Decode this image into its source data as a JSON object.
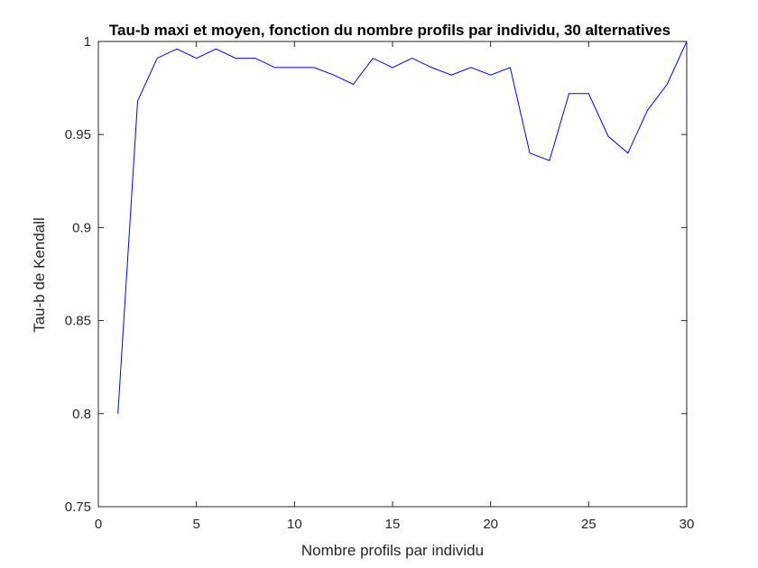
{
  "chart_data": {
    "type": "line",
    "title": "Tau-b maxi et moyen, fonction du nombre profils par individu, 30 alternatives",
    "xlabel": "Nombre profils par individu",
    "ylabel": "Tau-b de Kendall",
    "xlim": [
      0,
      30
    ],
    "ylim": [
      0.75,
      1
    ],
    "xticks": [
      0,
      5,
      10,
      15,
      20,
      25,
      30
    ],
    "xtick_labels": [
      "0",
      "5",
      "10",
      "15",
      "20",
      "25",
      "30"
    ],
    "yticks": [
      0.75,
      0.8,
      0.85,
      0.9,
      0.95,
      1
    ],
    "ytick_labels": [
      "0.75",
      "0.8",
      "0.85",
      "0.9",
      "0.95",
      "1"
    ],
    "grid": false,
    "line_color": "#0000ff",
    "axis_color": "#262626",
    "x": [
      1,
      2,
      3,
      4,
      5,
      6,
      7,
      8,
      9,
      10,
      11,
      12,
      13,
      14,
      15,
      16,
      17,
      18,
      19,
      20,
      21,
      22,
      23,
      24,
      25,
      26,
      27,
      28,
      29,
      30
    ],
    "values": [
      0.8,
      0.968,
      0.991,
      0.996,
      0.991,
      0.996,
      0.991,
      0.991,
      0.986,
      0.986,
      0.986,
      0.982,
      0.977,
      0.991,
      0.986,
      0.991,
      0.986,
      0.982,
      0.986,
      0.982,
      0.986,
      0.94,
      0.936,
      0.972,
      0.972,
      0.949,
      0.94,
      0.963,
      0.977,
      1.0
    ]
  }
}
